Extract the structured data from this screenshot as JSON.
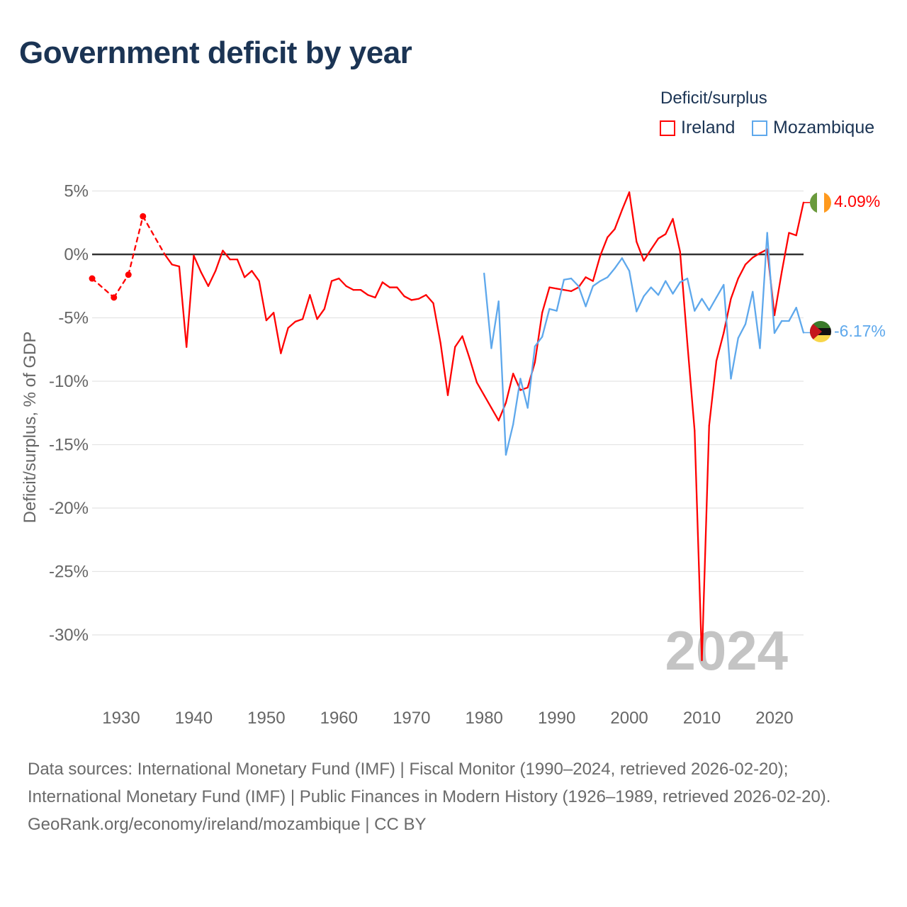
{
  "title": "Government deficit by year",
  "legend": {
    "title": "Deficit/surplus",
    "items": [
      {
        "label": "Ireland",
        "color": "#ff0000"
      },
      {
        "label": "Mozambique",
        "color": "#5ea8ec"
      }
    ]
  },
  "footer": {
    "sources": "Data sources: International Monetary Fund (IMF) | Fiscal Monitor (1990–2024, retrieved 2026-02-20); International Monetary Fund (IMF) | Public Finances in Modern History (1926–1989, retrieved 2026-02-20).",
    "credit": "GeoRank.org/economy/ireland/mozambique | CC BY"
  },
  "chart_data": {
    "type": "line",
    "title": "Government deficit by year",
    "xlabel": "",
    "ylabel": "Deficit/surplus, % of GDP",
    "xlim": [
      1926,
      2024
    ],
    "ylim": [
      -33,
      5.5
    ],
    "yticks": [
      5,
      0,
      -5,
      -10,
      -15,
      -20,
      -25,
      -30
    ],
    "ytick_labels": [
      "5%",
      "0%",
      "-5%",
      "-10%",
      "-15%",
      "-20%",
      "-25%",
      "-30%"
    ],
    "xticks": [
      1930,
      1940,
      1950,
      1960,
      1970,
      1980,
      1990,
      2000,
      2010,
      2020
    ],
    "xtick_labels": [
      "1930",
      "1940",
      "1950",
      "1960",
      "1970",
      "1980",
      "1990",
      "2000",
      "2010",
      "2020"
    ],
    "grid": true,
    "legend_position": "top-right",
    "year_watermark": "2024",
    "series": [
      {
        "name": "Ireland",
        "color": "#ff0000",
        "end_label": "4.09%",
        "points": [
          [
            1926,
            -1.9
          ],
          [
            1929,
            -3.4
          ],
          [
            1931,
            -1.6
          ],
          [
            1933,
            3.0
          ],
          [
            1936,
            0.0
          ],
          [
            1937,
            -0.8
          ],
          [
            1938,
            -0.95
          ],
          [
            1939,
            -7.3
          ],
          [
            1940,
            -0.1
          ],
          [
            1941,
            -1.4
          ],
          [
            1942,
            -2.5
          ],
          [
            1943,
            -1.3
          ],
          [
            1944,
            0.3
          ],
          [
            1945,
            -0.4
          ],
          [
            1946,
            -0.4
          ],
          [
            1947,
            -1.8
          ],
          [
            1948,
            -1.3
          ],
          [
            1949,
            -2.1
          ],
          [
            1950,
            -5.2
          ],
          [
            1951,
            -4.6
          ],
          [
            1952,
            -7.8
          ],
          [
            1953,
            -5.8
          ],
          [
            1954,
            -5.3
          ],
          [
            1955,
            -5.1
          ],
          [
            1956,
            -3.2
          ],
          [
            1957,
            -5.1
          ],
          [
            1958,
            -4.3
          ],
          [
            1959,
            -2.1
          ],
          [
            1960,
            -1.9
          ],
          [
            1961,
            -2.5
          ],
          [
            1962,
            -2.8
          ],
          [
            1963,
            -2.8
          ],
          [
            1964,
            -3.2
          ],
          [
            1965,
            -3.4
          ],
          [
            1966,
            -2.2
          ],
          [
            1967,
            -2.6
          ],
          [
            1968,
            -2.6
          ],
          [
            1969,
            -3.3
          ],
          [
            1970,
            -3.6
          ],
          [
            1971,
            -3.5
          ],
          [
            1972,
            -3.2
          ],
          [
            1973,
            -3.85
          ],
          [
            1974,
            -7.0
          ],
          [
            1975,
            -11.1
          ],
          [
            1976,
            -7.3
          ],
          [
            1977,
            -6.45
          ],
          [
            1978,
            -8.2
          ],
          [
            1979,
            -10.1
          ],
          [
            1980,
            -11.1
          ],
          [
            1981,
            -12.1
          ],
          [
            1982,
            -13.1
          ],
          [
            1983,
            -11.7
          ],
          [
            1984,
            -9.4
          ],
          [
            1985,
            -10.7
          ],
          [
            1986,
            -10.5
          ],
          [
            1987,
            -8.5
          ],
          [
            1988,
            -4.6
          ],
          [
            1989,
            -2.6
          ],
          [
            1990,
            -2.7
          ],
          [
            1991,
            -2.8
          ],
          [
            1992,
            -2.9
          ],
          [
            1993,
            -2.6
          ],
          [
            1994,
            -1.8
          ],
          [
            1995,
            -2.1
          ],
          [
            1996,
            -0.1
          ],
          [
            1997,
            1.35
          ],
          [
            1998,
            2.0
          ],
          [
            1999,
            3.5
          ],
          [
            2000,
            4.9
          ],
          [
            2001,
            1.0
          ],
          [
            2002,
            -0.5
          ],
          [
            2003,
            0.4
          ],
          [
            2004,
            1.25
          ],
          [
            2005,
            1.6
          ],
          [
            2006,
            2.8
          ],
          [
            2007,
            0.2
          ],
          [
            2008,
            -7.0
          ],
          [
            2009,
            -13.9
          ],
          [
            2010,
            -32.0
          ],
          [
            2011,
            -13.5
          ],
          [
            2012,
            -8.4
          ],
          [
            2013,
            -6.2
          ],
          [
            2014,
            -3.5
          ],
          [
            2015,
            -1.9
          ],
          [
            2016,
            -0.8
          ],
          [
            2017,
            -0.25
          ],
          [
            2018,
            0.1
          ],
          [
            2019,
            0.4
          ],
          [
            2020,
            -4.8
          ],
          [
            2021,
            -1.4
          ],
          [
            2022,
            1.7
          ],
          [
            2023,
            1.5
          ],
          [
            2024,
            4.09
          ]
        ]
      },
      {
        "name": "Mozambique",
        "color": "#5ea8ec",
        "end_label": "-6.17%",
        "points": [
          [
            1980,
            -1.5
          ],
          [
            1981,
            -7.4
          ],
          [
            1982,
            -3.7
          ],
          [
            1983,
            -15.8
          ],
          [
            1984,
            -13.4
          ],
          [
            1985,
            -9.8
          ],
          [
            1986,
            -12.1
          ],
          [
            1987,
            -7.25
          ],
          [
            1988,
            -6.5
          ],
          [
            1989,
            -4.3
          ],
          [
            1990,
            -4.45
          ],
          [
            1991,
            -2.0
          ],
          [
            1992,
            -1.9
          ],
          [
            1993,
            -2.5
          ],
          [
            1994,
            -4.1
          ],
          [
            1995,
            -2.5
          ],
          [
            1996,
            -2.1
          ],
          [
            1997,
            -1.8
          ],
          [
            1998,
            -1.1
          ],
          [
            1999,
            -0.3
          ],
          [
            2000,
            -1.3
          ],
          [
            2001,
            -4.5
          ],
          [
            2002,
            -3.3
          ],
          [
            2003,
            -2.6
          ],
          [
            2004,
            -3.2
          ],
          [
            2005,
            -2.1
          ],
          [
            2006,
            -3.1
          ],
          [
            2007,
            -2.2
          ],
          [
            2008,
            -1.9
          ],
          [
            2009,
            -4.45
          ],
          [
            2010,
            -3.5
          ],
          [
            2011,
            -4.4
          ],
          [
            2012,
            -3.4
          ],
          [
            2013,
            -2.4
          ],
          [
            2014,
            -9.8
          ],
          [
            2015,
            -6.6
          ],
          [
            2016,
            -5.5
          ],
          [
            2017,
            -2.95
          ],
          [
            2018,
            -7.4
          ],
          [
            2019,
            1.7
          ],
          [
            2020,
            -6.2
          ],
          [
            2021,
            -5.25
          ],
          [
            2022,
            -5.25
          ],
          [
            2023,
            -4.2
          ],
          [
            2024,
            -6.17
          ]
        ]
      }
    ]
  }
}
